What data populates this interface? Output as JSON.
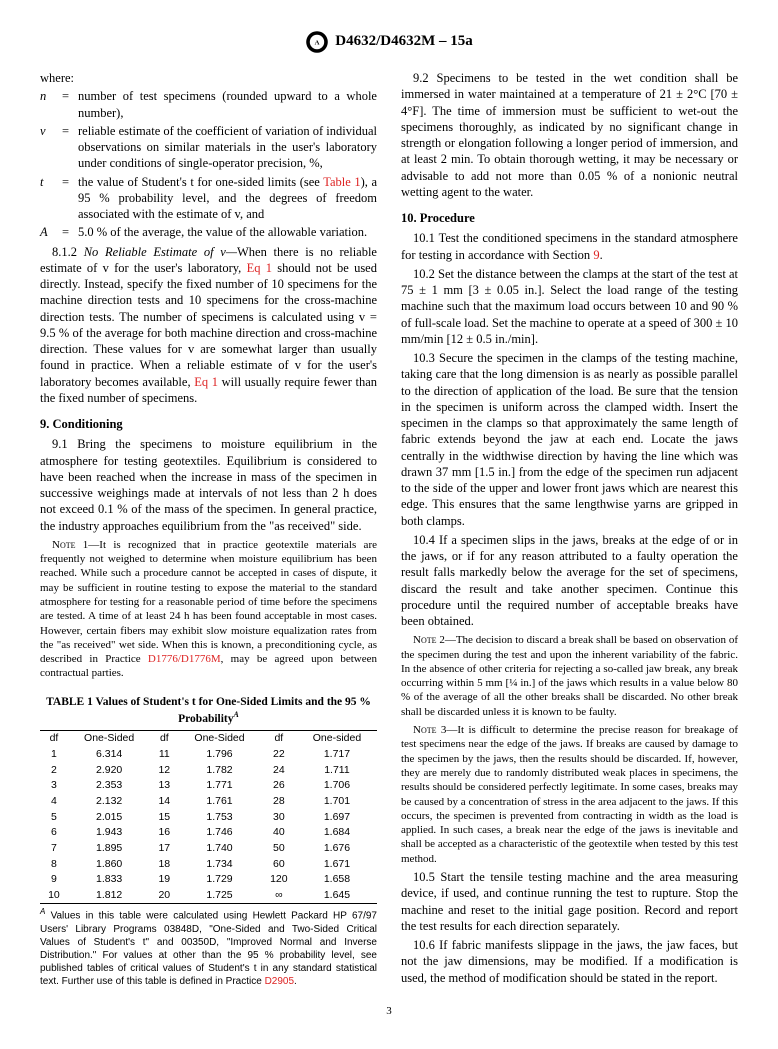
{
  "header": {
    "designation": "D4632/D4632M – 15a"
  },
  "where": {
    "label": "where:",
    "defs": [
      {
        "sym": "n",
        "txt": "number of test specimens (rounded upward to a whole number),"
      },
      {
        "sym": "v",
        "txt": "reliable estimate of the coefficient of variation of individual observations on similar materials in the user's laboratory under conditions of single-operator precision, %,"
      },
      {
        "sym": "t",
        "txt": "the value of Student's t for one-sided limits (see "
      },
      {
        "sym": "A",
        "txt": "5.0 % of the average, the value of the allowable variation."
      }
    ],
    "tref": "Table 1",
    "tcont": "), a 95 % probability level, and the degrees of freedom associated with the estimate of v, and"
  },
  "p812": {
    "num": "8.1.2",
    "title": "No Reliable Estimate of v—",
    "body1": "When there is no reliable estimate of v for the user's laboratory, ",
    "eq": "Eq 1",
    "body2": " should not be used directly. Instead, specify the fixed number of 10 specimens for the machine direction tests and 10 specimens for the cross-machine direction tests. The number of specimens is calculated using v = 9.5 % of the average for both machine direction and cross-machine direction. These values for v are somewhat larger than usually found in practice. When a reliable estimate of v for the user's laboratory becomes available, ",
    "body3": " will usually require fewer than the fixed number of specimens."
  },
  "s9": {
    "title": "9.  Conditioning",
    "p91": "9.1 Bring the specimens to moisture equilibrium in the atmosphere for testing geotextiles. Equilibrium is considered to have been reached when the increase in mass of the specimen in successive weighings made at intervals of not less than 2 h does not exceed 0.1 % of the mass of the specimen. In general practice, the industry approaches equilibrium from the \"as received\" side.",
    "n1a": "It is recognized that in practice geotextile materials are frequently not weighed to determine when moisture equilibrium has been reached. While such a procedure cannot be accepted in cases of dispute, it may be sufficient in routine testing to expose the material to the standard atmosphere for testing for a reasonable period of time before the specimens are tested. A time of at least 24 h has been found acceptable in most cases. However, certain fibers may exhibit slow moisture equalization rates from the \"as received\" wet side. When this is known, a preconditioning cycle, as described in Practice ",
    "n1ref": "D1776/D1776M",
    "n1b": ", may be agreed upon between contractual parties.",
    "p92": "9.2 Specimens to be tested in the wet condition shall be immersed in water maintained at a temperature of 21 ± 2°C [70 ± 4°F]. The time of immersion must be sufficient to wet-out the specimens thoroughly, as indicated by no significant change in strength or elongation following a longer period of immersion, and at least 2 min. To obtain thorough wetting, it may be necessary or advisable to add not more than 0.05 % of a nonionic neutral wetting agent to the water."
  },
  "s10": {
    "title": "10.  Procedure",
    "p101a": "10.1 Test the conditioned specimens in the standard atmosphere for testing in accordance with Section ",
    "p101ref": "9",
    "p101b": ".",
    "p102": "10.2 Set the distance between the clamps at the start of the test at 75 ± 1 mm [3 ± 0.05 in.]. Select the load range of the testing machine such that the maximum load occurs between 10 and 90 % of full-scale load. Set the machine to operate at a speed of 300 ± 10 mm/min [12 ± 0.5 in./min].",
    "p103": "10.3 Secure the specimen in the clamps of the testing machine, taking care that the long dimension is as nearly as possible parallel to the direction of application of the load. Be sure that the tension in the specimen is uniform across the clamped width. Insert the specimen in the clamps so that approximately the same length of fabric extends beyond the jaw at each end. Locate the jaws centrally in the widthwise direction by having the line which was drawn 37 mm [1.5 in.] from the edge of the specimen run adjacent to the side of the upper and lower front jaws which are nearest this edge. This ensures that the same lengthwise yarns are gripped in both clamps.",
    "p104": "10.4 If a specimen slips in the jaws, breaks at the edge of or in the jaws, or if for any reason attributed to a faulty operation the result falls markedly below the average for the set of specimens, discard the result and take another specimen. Continue this procedure until the required number of acceptable breaks have been obtained.",
    "n2": "The decision to discard a break shall be based on observation of the specimen during the test and upon the inherent variability of the fabric. In the absence of other criteria for rejecting a so-called jaw break, any break occurring within 5 mm [¼ in.] of the jaws which results in a value below 80 % of the average of all the other breaks shall be discarded. No other break shall be discarded unless it is known to be faulty.",
    "n3": "It is difficult to determine the precise reason for breakage of test specimens near the edge of the jaws. If breaks are caused by damage to the specimen by the jaws, then the results should be discarded. If, however, they are merely due to randomly distributed weak places in specimens, the results should be considered perfectly legitimate. In some cases, breaks may be caused by a concentration of stress in the area adjacent to the jaws. If this occurs, the specimen is prevented from contracting in width as the load is applied. In such cases, a break near the edge of the jaws is inevitable and shall be accepted as a characteristic of the geotextile when tested by this test method.",
    "p105": "10.5 Start the tensile testing machine and the area measuring device, if used, and continue running the test to rupture. Stop the machine and reset to the initial gage position. Record and report the test results for each direction separately.",
    "p106": "10.6 If fabric manifests slippage in the jaws, the jaw faces, but not the jaw dimensions, may be modified. If a modification is used, the method of modification should be stated in the report."
  },
  "table": {
    "title": "TABLE 1 Values of Student's t for One-Sided Limits and the 95 % Probability",
    "h1": "df",
    "h2": "One-Sided",
    "rows": [
      [
        "1",
        "6.314",
        "11",
        "1.796",
        "22",
        "1.717"
      ],
      [
        "2",
        "2.920",
        "12",
        "1.782",
        "24",
        "1.711"
      ],
      [
        "3",
        "2.353",
        "13",
        "1.771",
        "26",
        "1.706"
      ],
      [
        "4",
        "2.132",
        "14",
        "1.761",
        "28",
        "1.701"
      ],
      [
        "5",
        "2.015",
        "15",
        "1.753",
        "30",
        "1.697"
      ],
      [
        "6",
        "1.943",
        "16",
        "1.746",
        "40",
        "1.684"
      ],
      [
        "7",
        "1.895",
        "17",
        "1.740",
        "50",
        "1.676"
      ],
      [
        "8",
        "1.860",
        "18",
        "1.734",
        "60",
        "1.671"
      ],
      [
        "9",
        "1.833",
        "19",
        "1.729",
        "120",
        "1.658"
      ],
      [
        "10",
        "1.812",
        "20",
        "1.725",
        "∞",
        "1.645"
      ]
    ],
    "fnA": "Values in this table were calculated using Hewlett Packard HP 67/97 Users' Library Programs 03848D, \"One-Sided and Two-Sided Critical Values of Student's t\" and 00350D, \"Improved Normal and Inverse Distribution.\" For values at other than the 95 % probability level, see published tables of critical values of Student's t in any standard statistical text. Further use of this table is defined in Practice ",
    "fnRef": "D2905",
    "fnB": "."
  },
  "pagenum": "3",
  "labels": {
    "note1": "Note 1—",
    "note2": "Note 2—",
    "note3": "Note 3—",
    "A": "A"
  }
}
